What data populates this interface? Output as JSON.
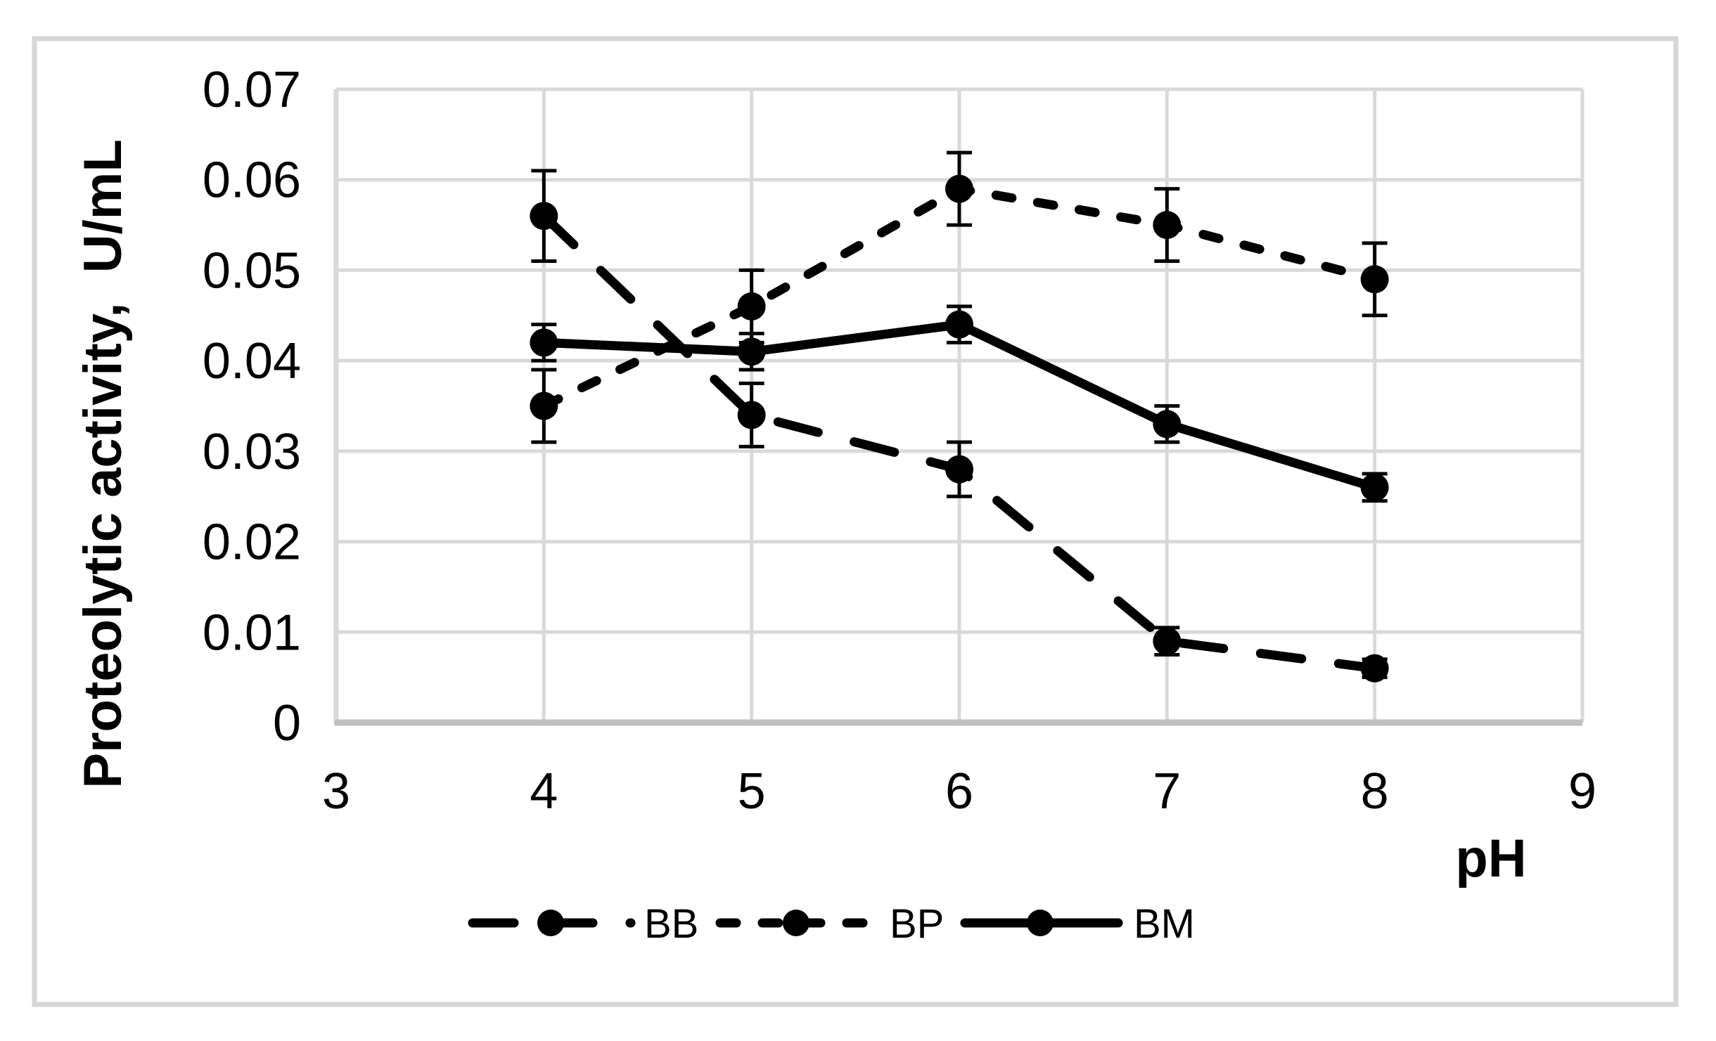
{
  "figure": {
    "background": "#ffffff",
    "border_color": "#d6d6d6",
    "line_color": "#000000",
    "grid_color": "#d9d9d9",
    "axis_line_color": "#bfbfbf"
  },
  "chart_data": {
    "type": "line",
    "title": "",
    "xlabel": "pH",
    "ylabel": "Proteolytic activity,  U/mL",
    "x_ticks": [
      3,
      4,
      5,
      6,
      7,
      8,
      9
    ],
    "y_ticks": [
      "0",
      "0.01",
      "0.02",
      "0.03",
      "0.04",
      "0.05",
      "0.06",
      "0.07"
    ],
    "y_tick_values": [
      0,
      0.01,
      0.02,
      0.03,
      0.04,
      0.05,
      0.06,
      0.07
    ],
    "xlim": [
      3,
      9
    ],
    "ylim": [
      0,
      0.07
    ],
    "grid": true,
    "legend_position": "bottom",
    "x": [
      4,
      5,
      6,
      7,
      8
    ],
    "series": [
      {
        "name": "BB",
        "line_style": "long-dash",
        "marker": "filled-circle",
        "color": "#000000",
        "values": [
          0.056,
          0.034,
          0.028,
          0.009,
          0.006
        ],
        "errors": [
          0.005,
          0.0035,
          0.003,
          0.0015,
          0.001
        ]
      },
      {
        "name": "BP",
        "line_style": "short-dash",
        "marker": "filled-circle",
        "color": "#000000",
        "values": [
          0.035,
          0.046,
          0.059,
          0.055,
          0.049
        ],
        "errors": [
          0.004,
          0.004,
          0.004,
          0.004,
          0.004
        ]
      },
      {
        "name": "BM",
        "line_style": "solid",
        "marker": "filled-circle",
        "color": "#000000",
        "values": [
          0.042,
          0.041,
          0.044,
          0.033,
          0.026
        ],
        "errors": [
          0.002,
          0.002,
          0.002,
          0.002,
          0.0015
        ]
      }
    ]
  }
}
